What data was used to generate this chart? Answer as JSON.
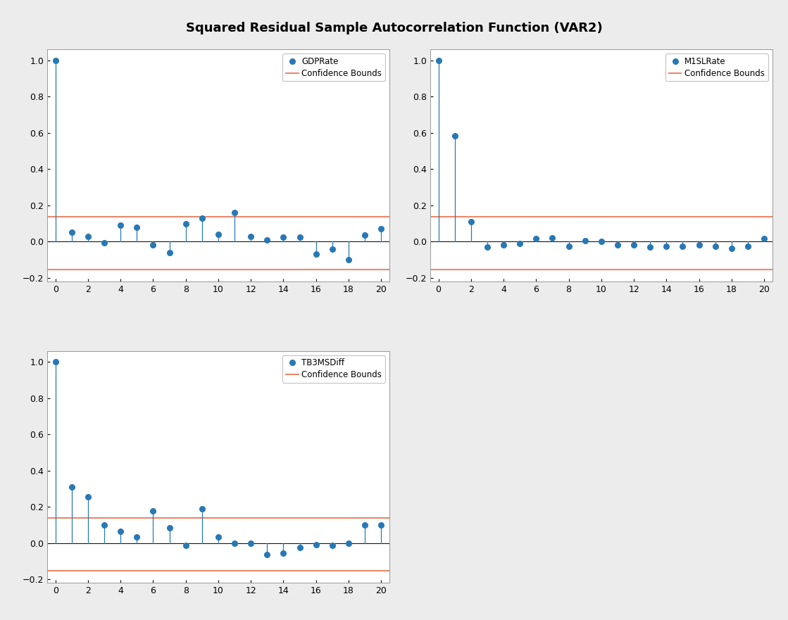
{
  "title": "Squared Residual Sample Autocorrelation Function (VAR2)",
  "confidence_bound_upper": 0.138,
  "confidence_bound_lower": -0.155,
  "line_color": "#2878b5",
  "conf_color": "#e8896a",
  "background_color": "#ececec",
  "subplot_bg": "#ffffff",
  "ylim": [
    -0.22,
    1.06
  ],
  "xlim": [
    -0.5,
    20.5
  ],
  "xticks": [
    0,
    2,
    4,
    6,
    8,
    10,
    12,
    14,
    16,
    18,
    20
  ],
  "yticks": [
    -0.2,
    0.0,
    0.2,
    0.4,
    0.6,
    0.8,
    1.0
  ],
  "gdprate_label": "GDPRate",
  "gdprate_acf": [
    1.0,
    0.05,
    0.03,
    -0.005,
    0.09,
    0.08,
    -0.02,
    -0.06,
    0.1,
    0.13,
    0.04,
    0.16,
    0.03,
    0.01,
    0.025,
    0.025,
    -0.07,
    -0.04,
    -0.1,
    0.035,
    0.07
  ],
  "m1slrate_label": "M1SLRate",
  "m1slrate_acf": [
    1.0,
    0.585,
    0.11,
    -0.03,
    -0.02,
    -0.01,
    0.015,
    0.02,
    -0.025,
    0.005,
    0.0,
    -0.018,
    -0.018,
    -0.03,
    -0.025,
    -0.028,
    -0.02,
    -0.025,
    -0.038,
    -0.028,
    0.015
  ],
  "tb3msdiff_label": "TB3MSDiff",
  "tb3msdiff_acf": [
    1.0,
    0.31,
    0.255,
    0.1,
    0.065,
    0.032,
    0.175,
    0.082,
    -0.012,
    0.19,
    0.035,
    -0.003,
    -0.003,
    -0.065,
    -0.058,
    -0.025,
    -0.01,
    -0.012,
    0.0,
    0.1,
    0.1
  ]
}
